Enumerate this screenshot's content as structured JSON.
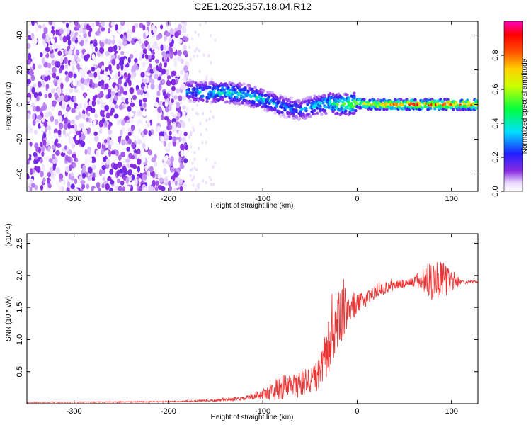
{
  "title": "C2E1.2025.357.18.04.R12",
  "chart_data": [
    {
      "type": "heatmap",
      "xlabel": "Height of straight line (km)",
      "ylabel": "Frequency (Hz)",
      "xlim": [
        -350,
        128
      ],
      "ylim": [
        -50,
        48
      ],
      "x_ticks": [
        -300,
        -200,
        -100,
        0,
        100
      ],
      "x_tick_labels": [
        "-300",
        "-200",
        "-100",
        "0",
        "100"
      ],
      "y_ticks": [
        -40,
        -20,
        0,
        20,
        40
      ],
      "y_tick_labels": [
        "-40",
        "-20",
        "0",
        "20",
        "40"
      ],
      "colorbar": {
        "label": "Normalized spectral amplitude",
        "range": [
          0,
          1
        ],
        "ticks": [
          0.0,
          0.2,
          0.4,
          0.6,
          0.8
        ],
        "tick_labels": [
          "0.0",
          "0.2",
          "0.4",
          "0.6",
          "0.8"
        ],
        "colormap": "rainbow (white-purple-blue-cyan-green-yellow-orange-red-magenta)"
      },
      "ridge": {
        "description": "frequency of the dominant spectral ridge vs height",
        "x": [
          -180,
          -160,
          -140,
          -120,
          -100,
          -80,
          -60,
          -45,
          -30,
          -20,
          -10,
          0,
          20,
          60,
          100,
          128
        ],
        "frequency": [
          8,
          7,
          7,
          6,
          3,
          -1,
          -3,
          -1,
          1,
          0,
          0,
          1,
          0,
          0,
          0,
          0
        ],
        "amplitude": [
          0.3,
          0.35,
          0.4,
          0.4,
          0.35,
          0.3,
          0.3,
          0.35,
          0.4,
          0.5,
          0.6,
          0.6,
          0.75,
          0.85,
          0.85,
          0.85
        ]
      },
      "noise_region": {
        "x_range": [
          -350,
          -180
        ],
        "frequency_range": [
          -50,
          48
        ],
        "amplitude_range": [
          0.0,
          0.15
        ]
      }
    },
    {
      "type": "line",
      "xlabel": "Height of straight line (km)",
      "ylabel": "SNR (10 * v/v)",
      "y_scale_label": "(x10^4)",
      "xlim": [
        -350,
        128
      ],
      "ylim": [
        0,
        2.65
      ],
      "x_ticks": [
        -300,
        -200,
        -100,
        0,
        100
      ],
      "x_tick_labels": [
        "-300",
        "-200",
        "-100",
        "0",
        "100"
      ],
      "y_ticks": [
        0.5,
        1.0,
        1.5,
        2.0,
        2.5
      ],
      "y_tick_labels": [
        "0.5",
        "1.0",
        "1.5",
        "2.0",
        "2.5"
      ],
      "series": [
        {
          "name": "SNR",
          "color": "#ee3333",
          "x": [
            -350,
            -200,
            -150,
            -120,
            -100,
            -90,
            -80,
            -60,
            -40,
            -30,
            -20,
            -10,
            0,
            20,
            40,
            60,
            80,
            100,
            110,
            128
          ],
          "values": [
            0.02,
            0.03,
            0.05,
            0.08,
            0.15,
            0.2,
            0.25,
            0.3,
            0.45,
            0.9,
            1.3,
            1.5,
            1.55,
            1.75,
            1.85,
            1.9,
            1.95,
            1.92,
            1.9,
            1.9
          ],
          "noise_amplitude": [
            0.005,
            0.01,
            0.02,
            0.03,
            0.08,
            0.15,
            0.2,
            0.2,
            0.25,
            0.45,
            0.45,
            0.35,
            0.15,
            0.1,
            0.08,
            0.08,
            0.35,
            0.2,
            0.03,
            0.02
          ]
        }
      ]
    }
  ],
  "icons": {
    "colorbar_gradient": "#ff00aa"
  }
}
